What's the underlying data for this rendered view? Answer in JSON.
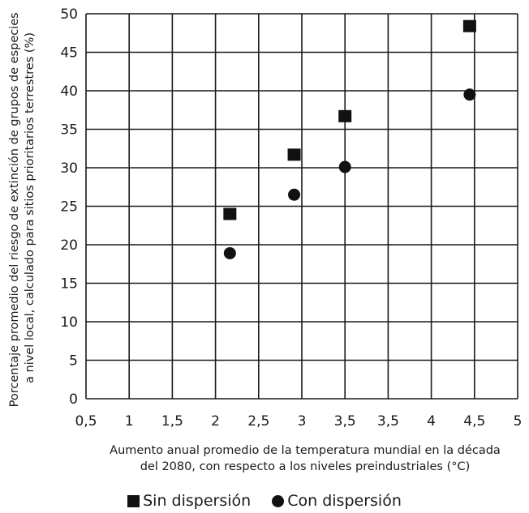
{
  "chart_data": {
    "type": "scatter",
    "ylabel_lines": [
      "Porcentaje promedio del riesgo de extinción de grupos de especies",
      "a nivel local, calculado para sitios prioritarios terrestres (%)"
    ],
    "xlabel_lines": [
      "Aumento anual promedio de la temperatura mundial en la década",
      "del 2080, con respecto a los niveles preindustriales (°C)"
    ],
    "x_tick_labels": [
      "0,5",
      "1",
      "1,5",
      "2",
      "2,5",
      "3",
      "3,5",
      "3,5",
      "4",
      "4,5",
      "5"
    ],
    "y_ticks": [
      0,
      5,
      10,
      15,
      20,
      25,
      30,
      35,
      40,
      45,
      50
    ],
    "xlim": [
      0.5,
      5
    ],
    "ylim": [
      0,
      50
    ],
    "grid": true,
    "legend_position": "bottom-center",
    "series": [
      {
        "name": "Sin dispersión",
        "marker": "square",
        "color": "#111111",
        "points": [
          {
            "x": 2.0,
            "y": 24
          },
          {
            "x": 2.67,
            "y": 31.7
          },
          {
            "x": 3.2,
            "y": 36.7
          },
          {
            "x": 4.5,
            "y": 48.4
          }
        ]
      },
      {
        "name": "Con dispersión",
        "marker": "circle",
        "color": "#111111",
        "points": [
          {
            "x": 2.0,
            "y": 18.9
          },
          {
            "x": 2.67,
            "y": 26.5
          },
          {
            "x": 3.2,
            "y": 30.1
          },
          {
            "x": 4.5,
            "y": 39.5
          }
        ]
      }
    ]
  }
}
